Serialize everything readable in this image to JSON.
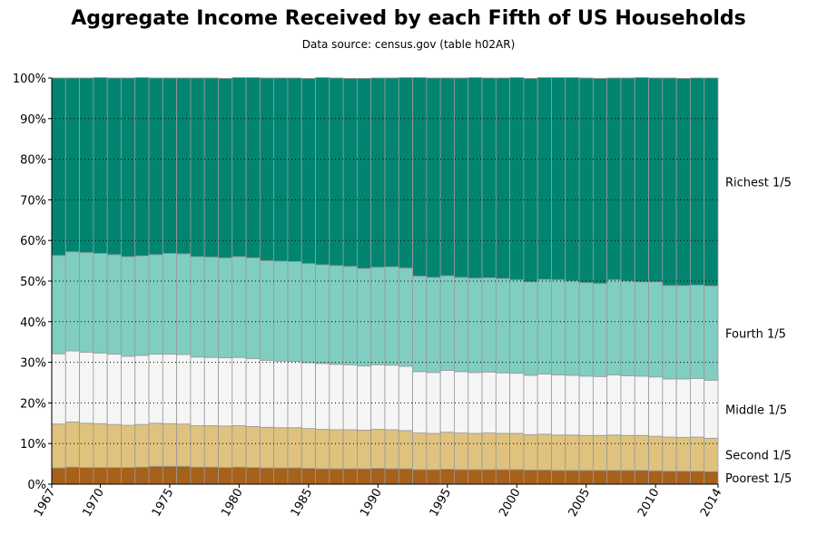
{
  "chart_data": {
    "type": "bar",
    "stacked": true,
    "title": "Aggregate Income Received by each Fifth of US Households",
    "subtitle": "Data source: census.gov (table h02AR)",
    "xlabel": "",
    "ylabel": "",
    "ylim": [
      0,
      100
    ],
    "yticks": [
      "0%",
      "10%",
      "20%",
      "30%",
      "40%",
      "50%",
      "60%",
      "70%",
      "80%",
      "90%",
      "100%"
    ],
    "ytick_values": [
      0,
      10,
      20,
      30,
      40,
      50,
      60,
      70,
      80,
      90,
      100
    ],
    "xtick_labels": [
      "1967",
      "1970",
      "1975",
      "1980",
      "1985",
      "1990",
      "1995",
      "2000",
      "2005",
      "2010",
      "2014"
    ],
    "grid": "horizontal dotted",
    "categories": [
      "1967",
      "1968",
      "1969",
      "1970",
      "1971",
      "1972",
      "1973",
      "1974",
      "1975",
      "1976",
      "1977",
      "1978",
      "1979",
      "1980",
      "1981",
      "1982",
      "1983",
      "1984",
      "1985",
      "1986",
      "1987",
      "1988",
      "1989",
      "1990",
      "1991",
      "1992",
      "1993",
      "1994",
      "1995",
      "1996",
      "1997",
      "1998",
      "1999",
      "2000",
      "2001",
      "2002",
      "2003",
      "2004",
      "2005",
      "2006",
      "2007",
      "2008",
      "2009",
      "2010",
      "2011",
      "2012",
      "2013",
      "2014"
    ],
    "series": [
      {
        "name": "Poorest 1/5",
        "color": "#a6611a",
        "values": [
          4.0,
          4.2,
          4.1,
          4.1,
          4.1,
          4.1,
          4.2,
          4.4,
          4.4,
          4.4,
          4.2,
          4.2,
          4.1,
          4.2,
          4.1,
          4.0,
          4.0,
          4.0,
          3.9,
          3.8,
          3.8,
          3.8,
          3.8,
          3.9,
          3.8,
          3.8,
          3.6,
          3.6,
          3.7,
          3.6,
          3.6,
          3.6,
          3.6,
          3.6,
          3.5,
          3.5,
          3.4,
          3.4,
          3.4,
          3.4,
          3.4,
          3.4,
          3.4,
          3.3,
          3.2,
          3.2,
          3.2,
          3.1
        ]
      },
      {
        "name": "Second 1/5",
        "color": "#dfc27d",
        "values": [
          10.8,
          11.1,
          10.9,
          10.8,
          10.6,
          10.4,
          10.5,
          10.6,
          10.5,
          10.4,
          10.2,
          10.2,
          10.2,
          10.2,
          10.1,
          10.0,
          9.9,
          9.9,
          9.8,
          9.7,
          9.6,
          9.6,
          9.5,
          9.6,
          9.6,
          9.4,
          9.0,
          8.9,
          9.1,
          9.0,
          8.9,
          9.0,
          8.9,
          8.9,
          8.7,
          8.8,
          8.7,
          8.7,
          8.6,
          8.6,
          8.7,
          8.6,
          8.6,
          8.5,
          8.4,
          8.3,
          8.4,
          8.2
        ]
      },
      {
        "name": "Middle 1/5",
        "color": "#f5f5f5",
        "values": [
          17.3,
          17.5,
          17.5,
          17.4,
          17.3,
          17.0,
          17.0,
          17.0,
          17.1,
          17.1,
          16.9,
          16.8,
          16.8,
          16.8,
          16.7,
          16.5,
          16.4,
          16.3,
          16.2,
          16.2,
          16.1,
          16.0,
          15.8,
          15.9,
          15.9,
          15.8,
          15.1,
          15.0,
          15.2,
          15.1,
          15.0,
          15.0,
          14.9,
          14.8,
          14.6,
          14.8,
          14.8,
          14.7,
          14.6,
          14.5,
          14.8,
          14.7,
          14.6,
          14.6,
          14.3,
          14.4,
          14.4,
          14.3
        ]
      },
      {
        "name": "Fourth 1/5",
        "color": "#80cdc1",
        "values": [
          24.2,
          24.4,
          24.5,
          24.5,
          24.5,
          24.5,
          24.5,
          24.5,
          24.8,
          24.8,
          24.7,
          24.7,
          24.6,
          24.8,
          24.8,
          24.5,
          24.6,
          24.6,
          24.4,
          24.3,
          24.3,
          24.2,
          24.0,
          24.0,
          24.2,
          24.2,
          23.5,
          23.4,
          23.3,
          23.2,
          23.2,
          23.2,
          23.2,
          23.0,
          23.0,
          23.3,
          23.4,
          23.2,
          23.0,
          22.9,
          23.4,
          23.3,
          23.2,
          23.4,
          23.0,
          23.0,
          23.0,
          23.2
        ]
      },
      {
        "name": "Richest 1/5",
        "color": "#018571",
        "values": [
          43.7,
          42.8,
          43.0,
          43.3,
          43.5,
          44.0,
          43.9,
          43.5,
          43.2,
          43.3,
          44.0,
          44.1,
          44.2,
          44.1,
          44.4,
          45.0,
          45.1,
          45.2,
          45.6,
          46.1,
          46.2,
          46.3,
          46.8,
          46.6,
          46.5,
          46.9,
          48.9,
          49.1,
          48.7,
          49.1,
          49.4,
          49.2,
          49.4,
          49.8,
          50.1,
          49.7,
          49.8,
          50.1,
          50.4,
          50.5,
          49.7,
          50.0,
          50.3,
          50.2,
          51.1,
          51.0,
          51.0,
          51.2
        ]
      }
    ]
  }
}
